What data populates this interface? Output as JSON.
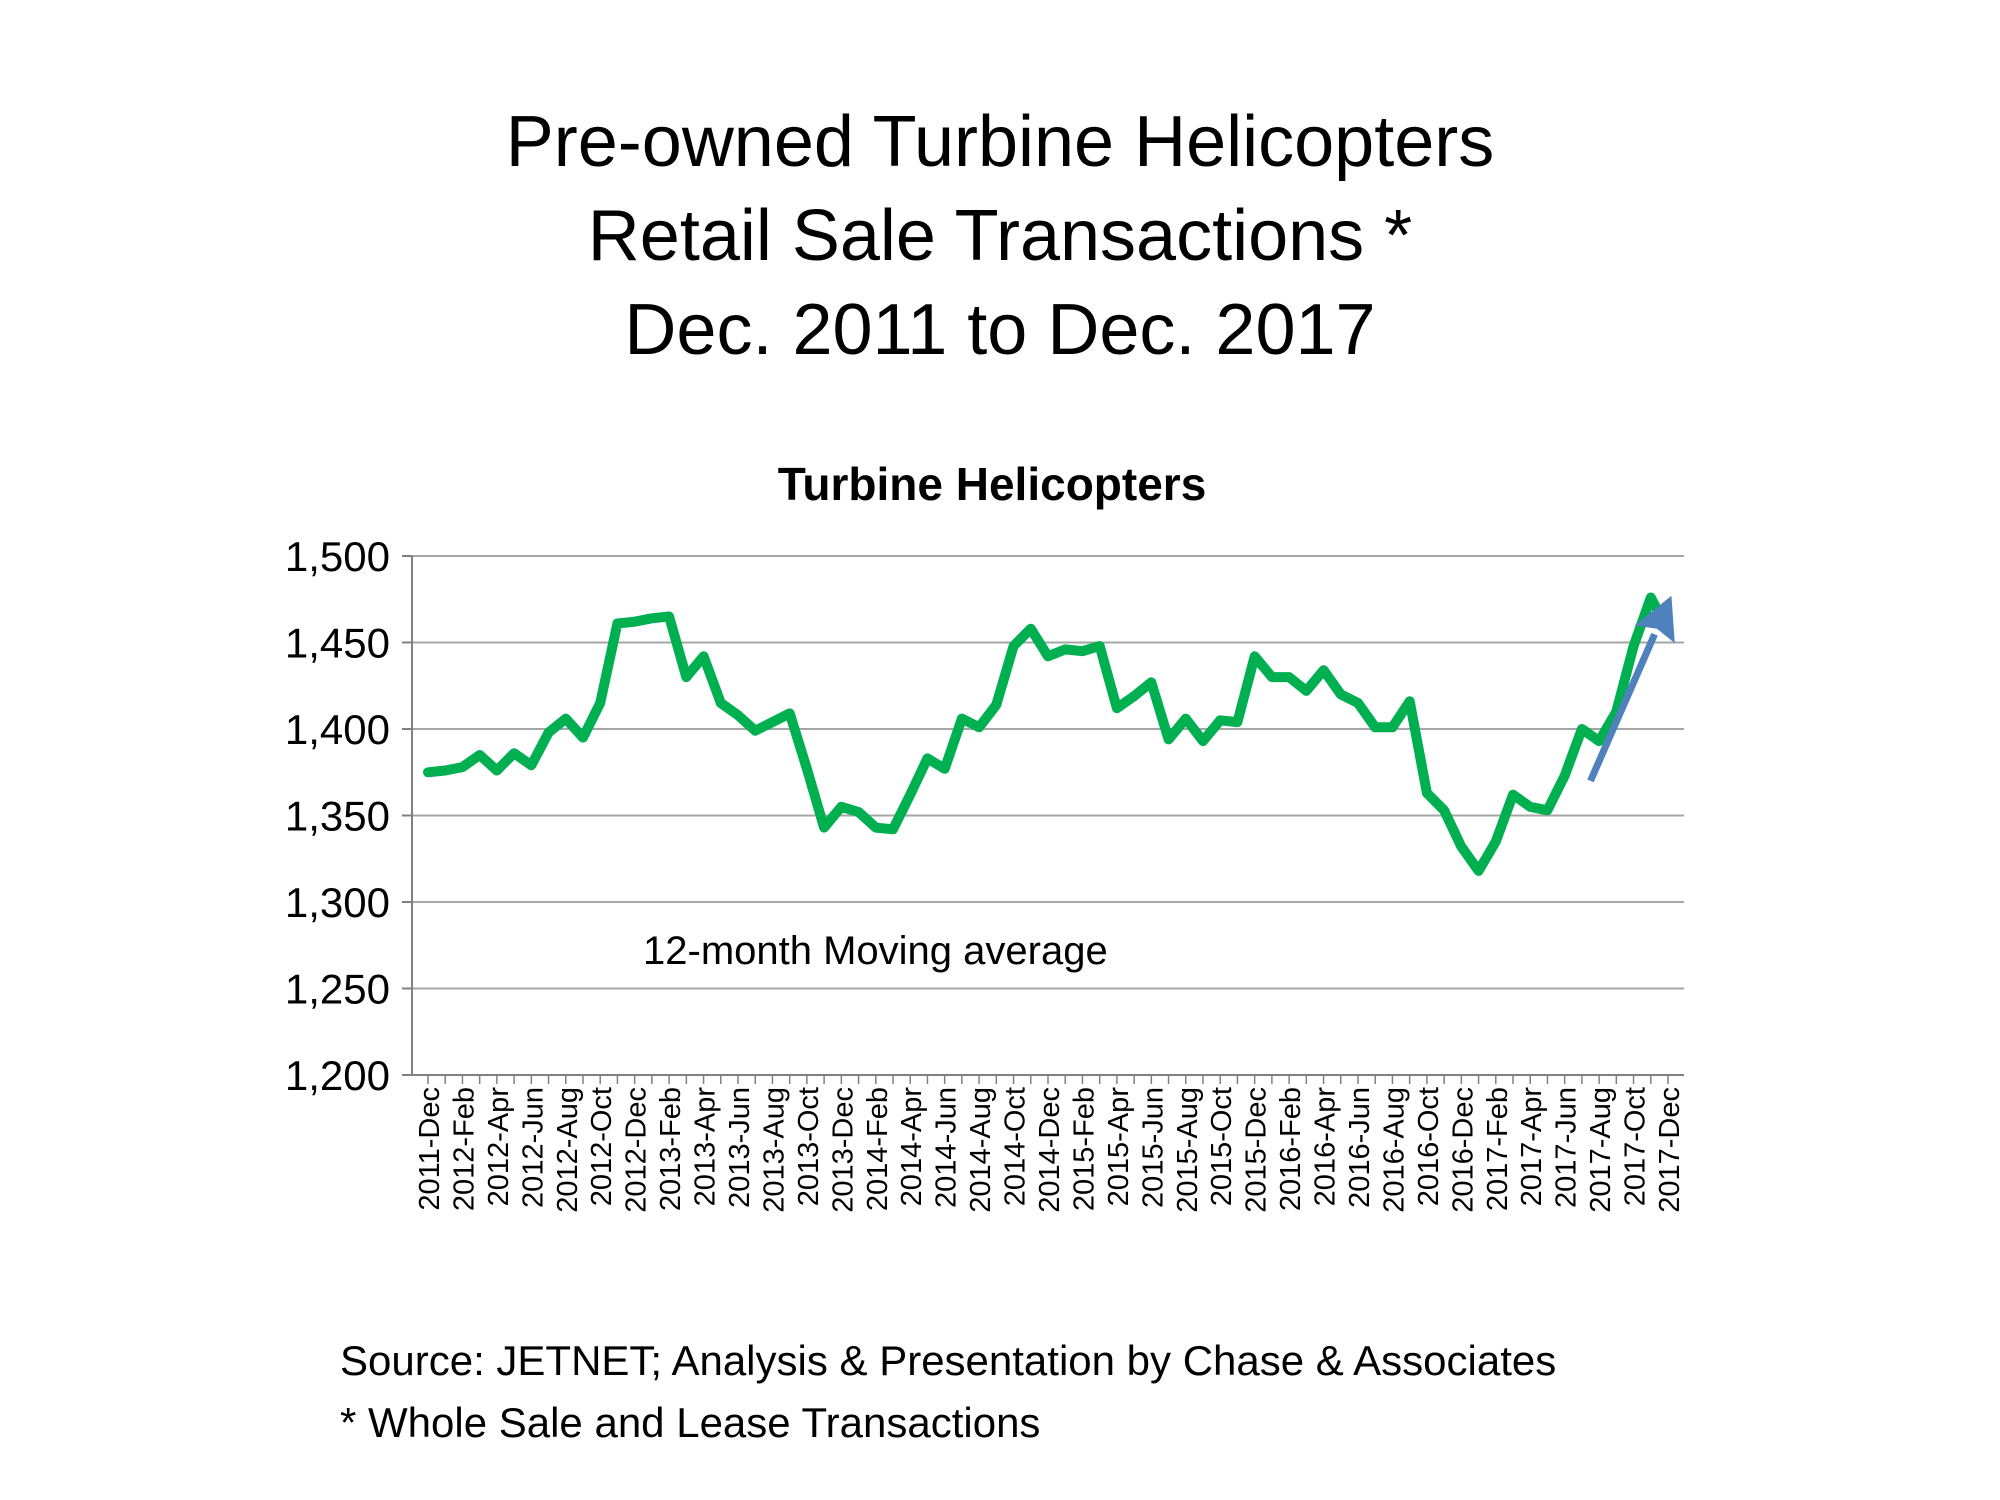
{
  "slide": {
    "title_lines": [
      "Pre-owned Turbine Helicopters",
      "Retail Sale Transactions *",
      "Dec. 2011 to Dec. 2017"
    ],
    "source": "Source: JETNET; Analysis & Presentation by Chase & Associates",
    "note": "* Whole Sale and Lease Transactions"
  },
  "colors": {
    "line": "#00b050",
    "arrow": "#4f81bd",
    "grid": "#a6a6a6",
    "axis": "#808080"
  },
  "chart_data": {
    "type": "line",
    "title": "Turbine Helicopters",
    "annotation": "12-month Moving average",
    "xlabel": "",
    "ylabel": "",
    "ylim": [
      1200,
      1500
    ],
    "yticks": [
      1200,
      1250,
      1300,
      1350,
      1400,
      1450,
      1500
    ],
    "ytick_labels": [
      "1,200",
      "1,250",
      "1,300",
      "1,350",
      "1,400",
      "1,450",
      "1,500"
    ],
    "xtick_labels": [
      "2011-Dec",
      "2012-Feb",
      "2012-Apr",
      "2012-Jun",
      "2012-Aug",
      "2012-Oct",
      "2012-Dec",
      "2013-Feb",
      "2013-Apr",
      "2013-Jun",
      "2013-Aug",
      "2013-Oct",
      "2013-Dec",
      "2014-Feb",
      "2014-Apr",
      "2014-Jun",
      "2014-Aug",
      "2014-Oct",
      "2014-Dec",
      "2015-Feb",
      "2015-Apr",
      "2015-Jun",
      "2015-Aug",
      "2015-Oct",
      "2015-Dec",
      "2016-Feb",
      "2016-Apr",
      "2016-Jun",
      "2016-Aug",
      "2016-Oct",
      "2016-Dec",
      "2017-Feb",
      "2017-Apr",
      "2017-Jun",
      "2017-Aug",
      "2017-Oct",
      "2017-Dec"
    ],
    "trend_arrow": {
      "from": [
        67.5,
        1370
      ],
      "to": [
        72.2,
        1477
      ]
    },
    "series": [
      {
        "name": "12-month Moving average",
        "values": [
          1375,
          1376,
          1378,
          1385,
          1376,
          1386,
          1379,
          1398,
          1406,
          1395,
          1415,
          1461,
          1462,
          1464,
          1465,
          1430,
          1442,
          1415,
          1408,
          1399,
          1404,
          1409,
          1377,
          1343,
          1355,
          1352,
          1343,
          1342,
          1362,
          1383,
          1377,
          1406,
          1401,
          1414,
          1448,
          1458,
          1442,
          1446,
          1445,
          1448,
          1412,
          1419,
          1427,
          1394,
          1406,
          1393,
          1405,
          1404,
          1442,
          1430,
          1430,
          1422,
          1434,
          1420,
          1415,
          1401,
          1401,
          1416,
          1363,
          1353,
          1332,
          1318,
          1335,
          1362,
          1355,
          1353,
          1373,
          1400,
          1393,
          1410,
          1448,
          1476,
          1457
        ]
      }
    ]
  }
}
